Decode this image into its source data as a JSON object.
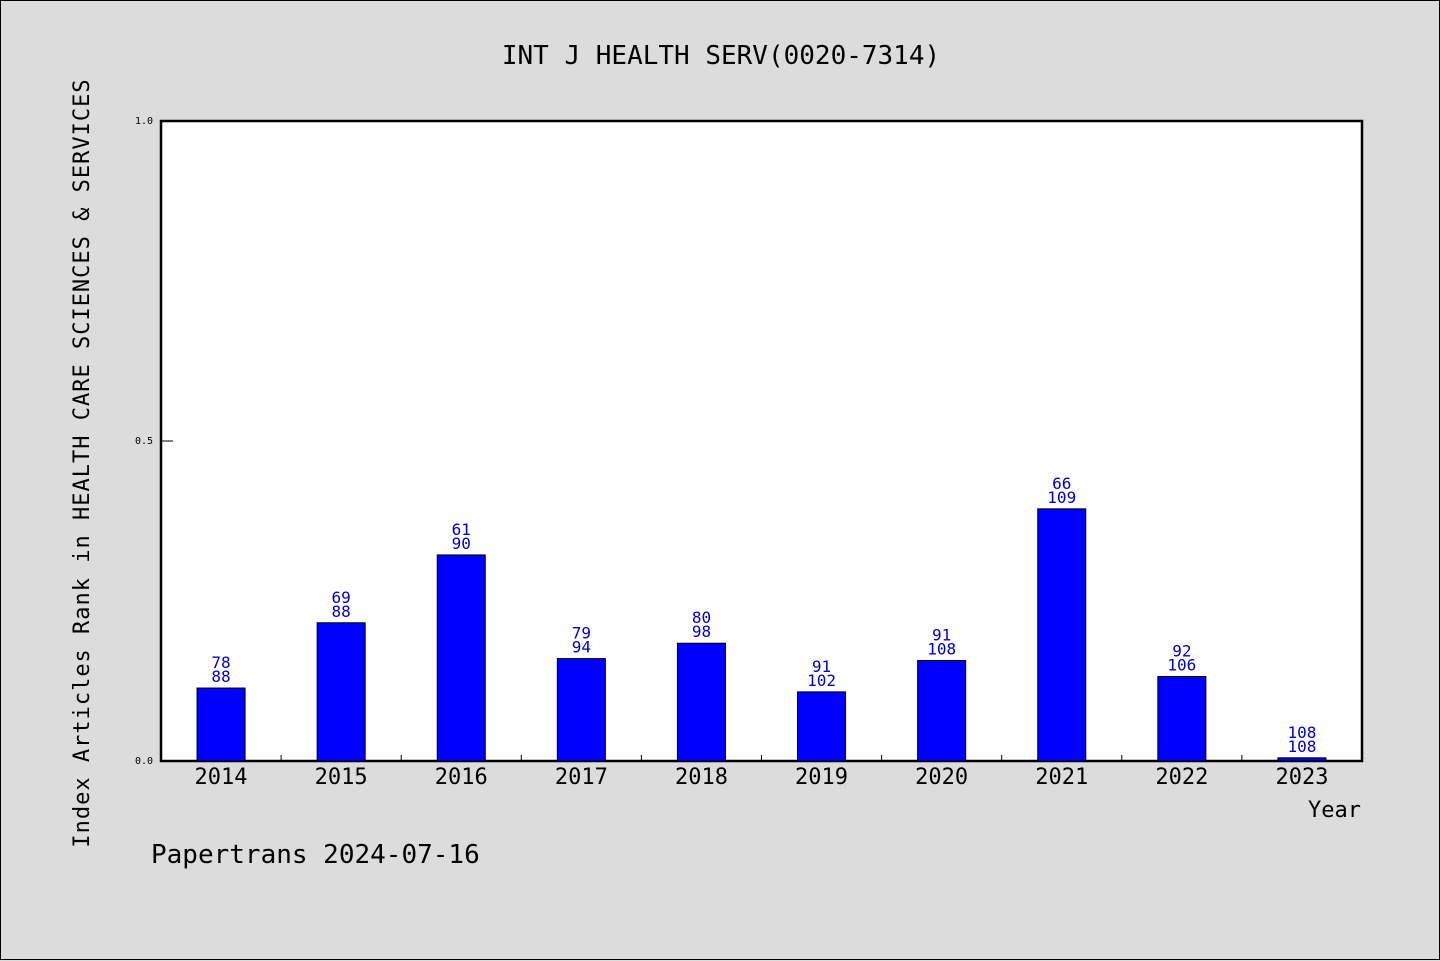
{
  "chart_data": {
    "type": "bar",
    "title": "INT J HEALTH SERV(0020-7314)",
    "ylabel": "Index Articles Rank in HEALTH CARE SCIENCES & SERVICES",
    "xlabel": "Year",
    "categories": [
      "2014",
      "2015",
      "2016",
      "2017",
      "2018",
      "2019",
      "2020",
      "2021",
      "2022",
      "2023"
    ],
    "series": [
      {
        "values": [
          0.114,
          0.216,
          0.322,
          0.16,
          0.184,
          0.108,
          0.157,
          0.394,
          0.132,
          0.005
        ],
        "rank": [
          78,
          69,
          61,
          79,
          80,
          91,
          91,
          66,
          92,
          108
        ],
        "total": [
          88,
          88,
          90,
          94,
          98,
          102,
          108,
          109,
          106,
          108
        ]
      }
    ],
    "yticks": [
      "0.0",
      "0.5",
      "1.0"
    ],
    "ylim": [
      0,
      1
    ],
    "grid": false,
    "bar_color": "#0000ff",
    "label_color": "#0000cc"
  },
  "footer": "Papertrans 2024-07-16"
}
